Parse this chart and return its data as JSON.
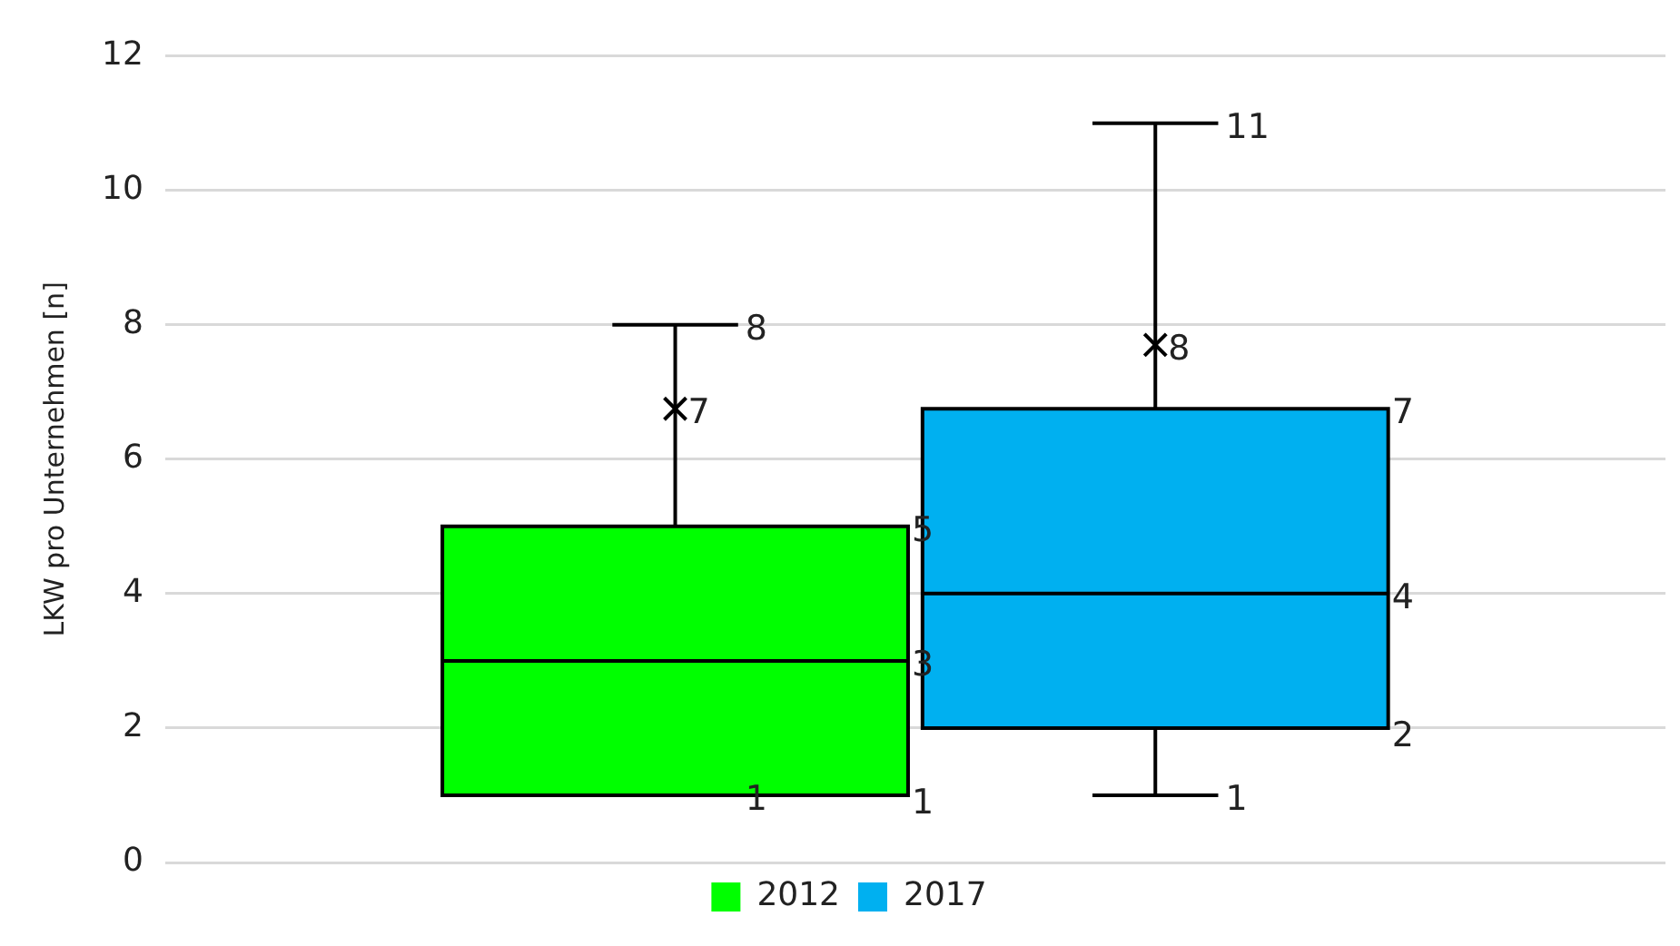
{
  "chart_data": {
    "type": "box",
    "ylabel": "LKW pro Unternehmen [n]",
    "categories": [
      null
    ],
    "series": [
      {
        "name": "2012",
        "color": "#00ff00",
        "boxes": [
          {
            "low": 1,
            "q1": 1,
            "median": 3,
            "q3": 5,
            "high": 8,
            "mean": 6.75
          }
        ]
      },
      {
        "name": "2017",
        "color": "#00b0f0",
        "boxes": [
          {
            "low": 1,
            "q1": 2,
            "median": 4,
            "q3": 6.75,
            "high": 11,
            "mean": 7.7
          }
        ]
      }
    ],
    "ylim": [
      0,
      12
    ],
    "yticks": [
      0,
      2,
      4,
      6,
      8,
      10,
      12
    ],
    "grid": "y",
    "legend": "bottom",
    "marker": "cross",
    "annotations": [
      "8",
      "7",
      "5",
      "3",
      "1",
      "1",
      "11",
      "8",
      "7",
      "4",
      "2",
      "1"
    ]
  }
}
